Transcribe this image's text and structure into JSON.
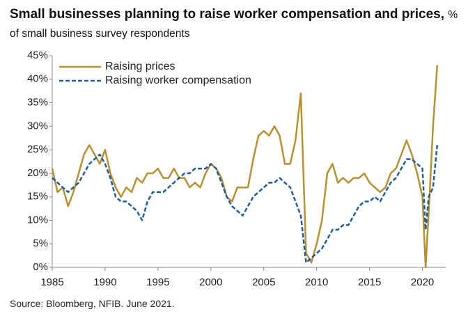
{
  "chart_data": {
    "type": "line",
    "title": "Small businesses planning to raise worker compensation and prices,",
    "subtitle": "% of small business survey respondents",
    "source": "Source: Bloomberg, NFIB. June 2021.",
    "x": [
      1985,
      1985.5,
      1986,
      1986.5,
      1987,
      1987.5,
      1988,
      1988.5,
      1989,
      1989.5,
      1990,
      1990.5,
      1991,
      1991.5,
      1992,
      1992.5,
      1993,
      1993.5,
      1994,
      1994.5,
      1995,
      1995.5,
      1996,
      1996.5,
      1997,
      1997.5,
      1998,
      1998.5,
      1999,
      1999.5,
      2000,
      2000.5,
      2001,
      2001.5,
      2002,
      2002.5,
      2003,
      2003.5,
      2004,
      2004.5,
      2005,
      2005.5,
      2006,
      2006.5,
      2007,
      2007.5,
      2008,
      2008.5,
      2009,
      2009.5,
      2010,
      2010.5,
      2011,
      2011.5,
      2012,
      2012.5,
      2013,
      2013.5,
      2014,
      2014.5,
      2015,
      2015.5,
      2016,
      2016.5,
      2017,
      2017.5,
      2018,
      2018.5,
      2019,
      2019.5,
      2020,
      2020.3,
      2020.6,
      2021,
      2021.4
    ],
    "series": [
      {
        "name": "Raising prices",
        "color": "#b8912f",
        "dashed": false,
        "values": [
          21,
          16,
          17,
          13,
          16,
          20,
          24,
          26,
          24,
          22,
          25,
          20,
          17,
          15,
          17,
          16,
          19,
          18,
          20,
          20,
          21,
          19,
          19,
          21,
          19,
          19,
          17,
          18,
          17,
          20,
          22,
          21,
          19,
          15,
          14,
          17,
          17,
          17,
          23,
          28,
          29,
          28,
          30,
          28,
          22,
          22,
          27,
          37,
          3,
          1,
          5,
          10,
          20,
          22,
          18,
          19,
          18,
          19,
          19,
          20,
          18,
          17,
          16,
          17,
          20,
          21,
          24,
          27,
          24,
          20,
          15,
          0,
          12,
          30,
          43
        ]
      },
      {
        "name": "Raising worker compensation",
        "color": "#1f5d99",
        "dashed": true,
        "values": [
          19,
          18,
          17,
          16,
          17,
          18,
          20,
          22,
          23,
          24,
          22,
          19,
          15,
          14,
          14,
          13,
          12,
          10,
          14,
          16,
          16,
          16,
          17,
          18,
          19,
          20,
          20,
          21,
          21,
          21,
          22,
          21,
          18,
          15,
          13,
          12,
          11,
          13,
          15,
          16,
          17,
          18,
          18,
          19,
          18,
          17,
          14,
          11,
          1,
          2,
          3,
          4,
          6,
          8,
          8,
          9,
          9,
          11,
          13,
          14,
          14,
          15,
          14,
          16,
          18,
          19,
          21,
          23,
          23,
          22,
          21,
          8,
          15,
          17,
          26
        ]
      }
    ],
    "xlim": [
      1985,
      2022.2
    ],
    "ylim": [
      0,
      45
    ],
    "xticks": [
      1985,
      1990,
      1995,
      2000,
      2005,
      2010,
      2015,
      2020
    ],
    "yticks": [
      {
        "value": 0,
        "label": "0%"
      },
      {
        "value": 5,
        "label": "5%"
      },
      {
        "value": 10,
        "label": "10%"
      },
      {
        "value": 15,
        "label": "15%"
      },
      {
        "value": 20,
        "label": "20%"
      },
      {
        "value": 25,
        "label": "25%"
      },
      {
        "value": 30,
        "label": "30%"
      },
      {
        "value": 35,
        "label": "35%"
      },
      {
        "value": 40,
        "label": "40%"
      },
      {
        "value": 45,
        "label": "45%"
      }
    ],
    "grid": false,
    "legend": "upper left"
  }
}
